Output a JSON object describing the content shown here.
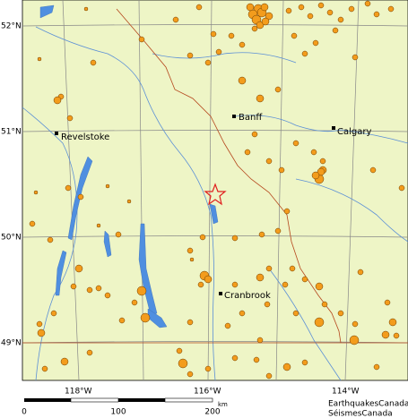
{
  "map": {
    "latitude_labels": [
      "52°N",
      "51°N",
      "50°N",
      "49°N"
    ],
    "longitude_labels": [
      "118°W",
      "116°W",
      "114°W"
    ],
    "places": [
      "Banff",
      "Calgary",
      "Revelstoke",
      "Cranbrook"
    ],
    "scale": {
      "ticks": [
        0,
        100,
        200
      ],
      "unit": "km"
    },
    "credits": [
      "EarthquakesCanada",
      "SéismesCanada"
    ]
  }
}
